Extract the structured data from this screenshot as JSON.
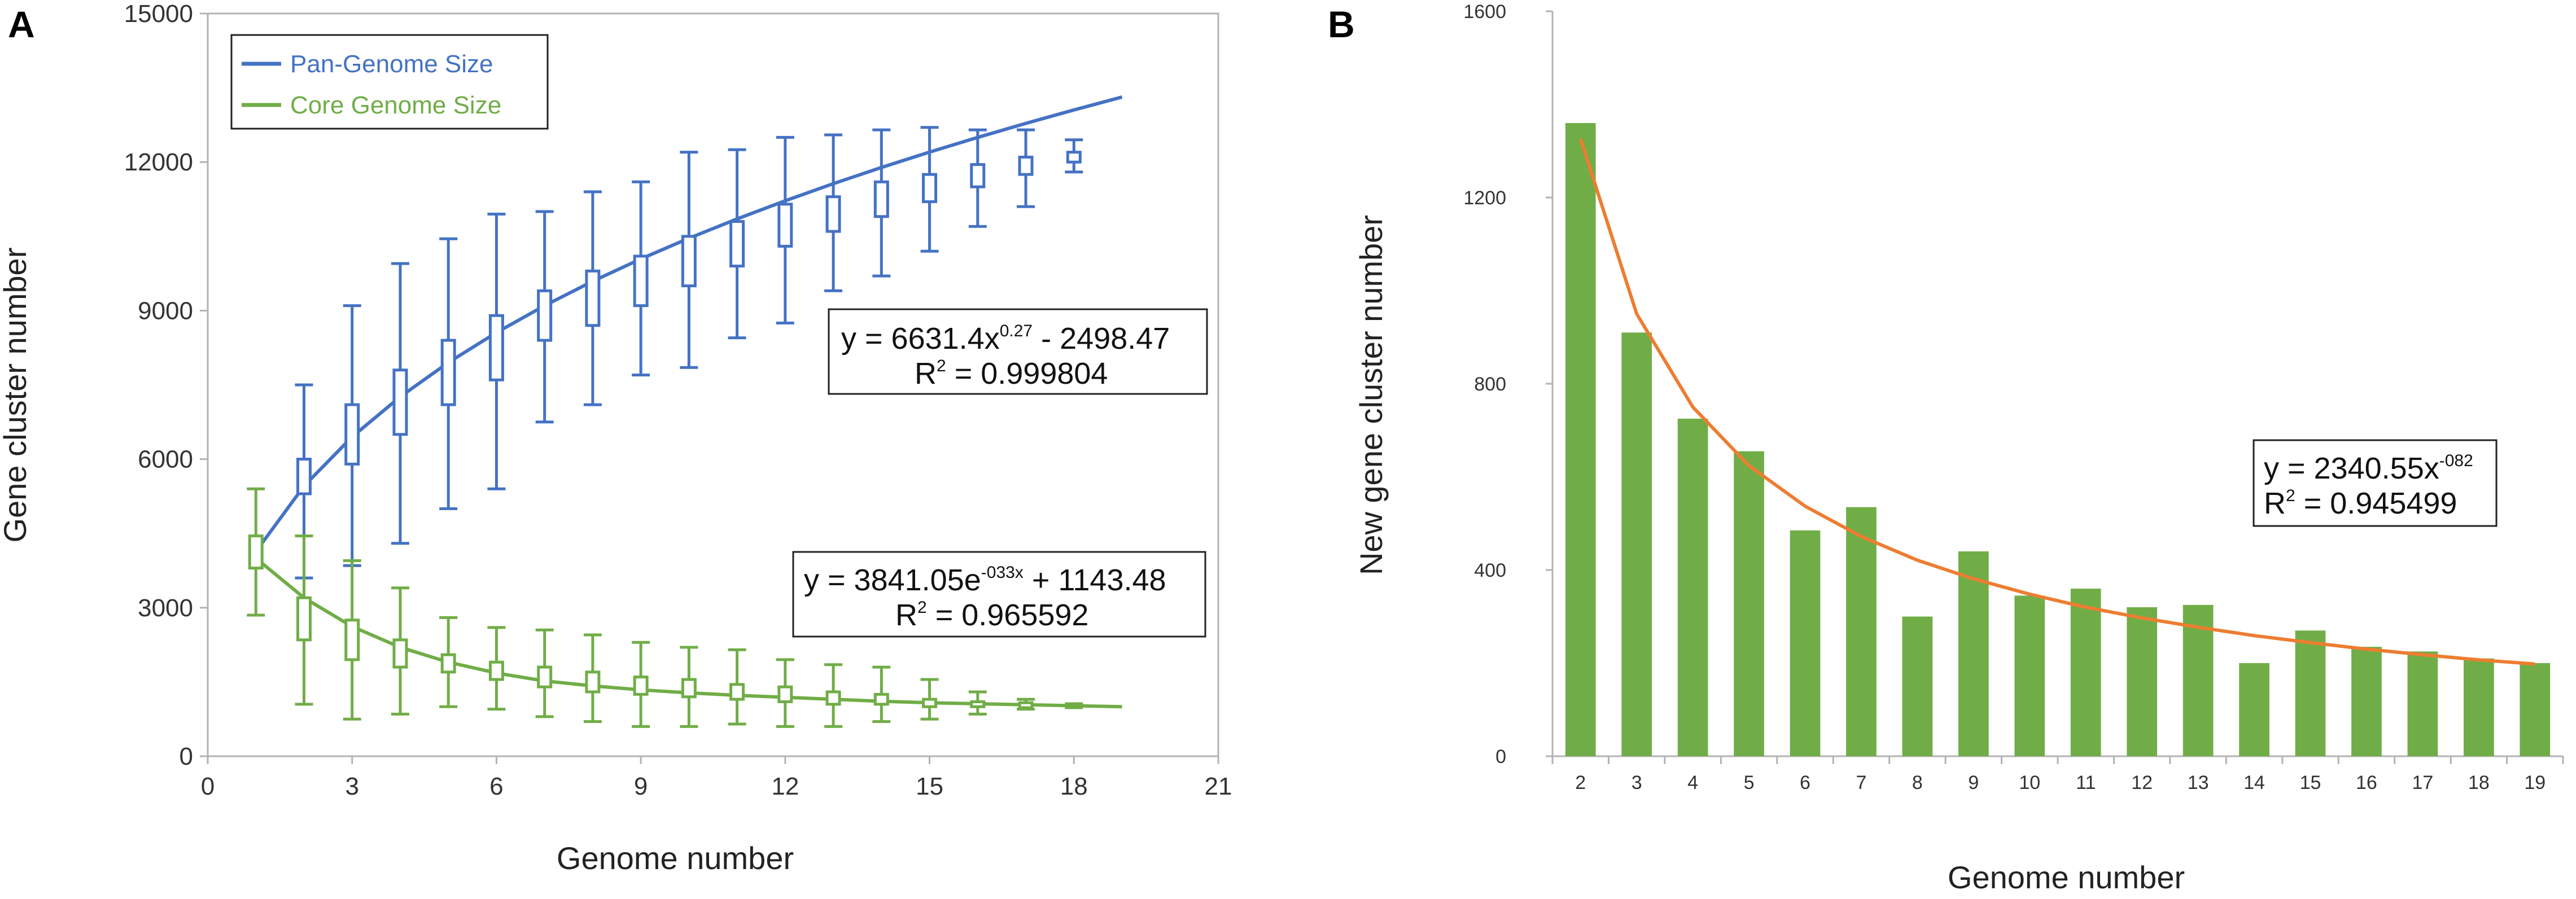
{
  "chart_data": [
    {
      "panel": "A",
      "type": "box-line",
      "xlabel": "Genome number",
      "ylabel": "Gene cluster number",
      "xlim": [
        0,
        21
      ],
      "ylim": [
        0,
        15000
      ],
      "xticks": [
        "0",
        "3",
        "6",
        "9",
        "12",
        "15",
        "18",
        "21"
      ],
      "yticks": [
        "0",
        "3000",
        "6000",
        "9000",
        "12000",
        "15000"
      ],
      "legend": {
        "position": "top-left",
        "entries": [
          "Pan-Genome Size",
          "Core Genome Size"
        ]
      },
      "colors": {
        "pan": "#4472c4",
        "core": "#70ad47"
      },
      "series": [
        {
          "name": "Pan-Genome Size",
          "fit_x": [
            1,
            2,
            3,
            4,
            5,
            6,
            7,
            8,
            9,
            10,
            11,
            12,
            13,
            14,
            15,
            16,
            17,
            18,
            19
          ],
          "fit_y": [
            4133,
            5457,
            6450,
            7260,
            7951,
            8557,
            9100,
            9593,
            10044,
            10462,
            10852,
            11218,
            11564,
            11891,
            12202,
            12498,
            12782,
            13053,
            13314
          ],
          "boxes": [
            {
              "x": 2,
              "min": 3600,
              "q1": 5300,
              "q3": 6000,
              "max": 7500
            },
            {
              "x": 3,
              "min": 3850,
              "q1": 5900,
              "q3": 7100,
              "max": 9100
            },
            {
              "x": 4,
              "min": 4300,
              "q1": 6500,
              "q3": 7800,
              "max": 9950
            },
            {
              "x": 5,
              "min": 5000,
              "q1": 7100,
              "q3": 8400,
              "max": 10450
            },
            {
              "x": 6,
              "min": 5400,
              "q1": 7600,
              "q3": 8900,
              "max": 10950
            },
            {
              "x": 7,
              "min": 6750,
              "q1": 8400,
              "q3": 9400,
              "max": 11000
            },
            {
              "x": 8,
              "min": 7100,
              "q1": 8700,
              "q3": 9800,
              "max": 11400
            },
            {
              "x": 9,
              "min": 7700,
              "q1": 9100,
              "q3": 10100,
              "max": 11600
            },
            {
              "x": 10,
              "min": 7850,
              "q1": 9500,
              "q3": 10500,
              "max": 12200
            },
            {
              "x": 11,
              "min": 8450,
              "q1": 9900,
              "q3": 10800,
              "max": 12250
            },
            {
              "x": 12,
              "min": 8750,
              "q1": 10300,
              "q3": 11150,
              "max": 12500
            },
            {
              "x": 13,
              "min": 9400,
              "q1": 10600,
              "q3": 11300,
              "max": 12550
            },
            {
              "x": 14,
              "min": 9700,
              "q1": 10900,
              "q3": 11600,
              "max": 12650
            },
            {
              "x": 15,
              "min": 10200,
              "q1": 11200,
              "q3": 11750,
              "max": 12700
            },
            {
              "x": 16,
              "min": 10700,
              "q1": 11500,
              "q3": 11950,
              "max": 12650
            },
            {
              "x": 17,
              "min": 11100,
              "q1": 11750,
              "q3": 12100,
              "max": 12650
            },
            {
              "x": 18,
              "min": 11800,
              "q1": 12000,
              "q3": 12200,
              "max": 12450
            }
          ],
          "equation": "y = 6631.4x^0.27 - 2498.47",
          "r2": "0.999804"
        },
        {
          "name": "Core Genome Size",
          "fit_x": [
            1,
            2,
            3,
            4,
            5,
            6,
            7,
            8,
            9,
            10,
            11,
            12,
            13,
            14,
            15,
            16,
            17,
            18,
            19
          ],
          "fit_y": [
            4000,
            3200,
            2620,
            2200,
            1900,
            1680,
            1520,
            1420,
            1340,
            1280,
            1230,
            1190,
            1150,
            1110,
            1080,
            1060,
            1040,
            1020,
            1000
          ],
          "boxes": [
            {
              "x": 1,
              "min": 2850,
              "q1": 3800,
              "q3": 4450,
              "max": 5400
            },
            {
              "x": 2,
              "min": 1050,
              "q1": 2350,
              "q3": 3200,
              "max": 4450
            },
            {
              "x": 3,
              "min": 750,
              "q1": 1950,
              "q3": 2750,
              "max": 3950
            },
            {
              "x": 4,
              "min": 850,
              "q1": 1800,
              "q3": 2350,
              "max": 3400
            },
            {
              "x": 5,
              "min": 1000,
              "q1": 1700,
              "q3": 2050,
              "max": 2800
            },
            {
              "x": 6,
              "min": 950,
              "q1": 1550,
              "q3": 1900,
              "max": 2600
            },
            {
              "x": 7,
              "min": 800,
              "q1": 1400,
              "q3": 1800,
              "max": 2550
            },
            {
              "x": 8,
              "min": 700,
              "q1": 1300,
              "q3": 1700,
              "max": 2450
            },
            {
              "x": 9,
              "min": 600,
              "q1": 1250,
              "q3": 1600,
              "max": 2300
            },
            {
              "x": 10,
              "min": 600,
              "q1": 1200,
              "q3": 1550,
              "max": 2200
            },
            {
              "x": 11,
              "min": 650,
              "q1": 1150,
              "q3": 1450,
              "max": 2150
            },
            {
              "x": 12,
              "min": 600,
              "q1": 1100,
              "q3": 1400,
              "max": 1950
            },
            {
              "x": 13,
              "min": 600,
              "q1": 1050,
              "q3": 1300,
              "max": 1850
            },
            {
              "x": 14,
              "min": 700,
              "q1": 1050,
              "q3": 1250,
              "max": 1800
            },
            {
              "x": 15,
              "min": 750,
              "q1": 1000,
              "q3": 1150,
              "max": 1550
            },
            {
              "x": 16,
              "min": 850,
              "q1": 1000,
              "q3": 1100,
              "max": 1300
            },
            {
              "x": 17,
              "min": 950,
              "q1": 980,
              "q3": 1080,
              "max": 1150
            },
            {
              "x": 18,
              "min": 980,
              "q1": 990,
              "q3": 1040,
              "max": 1060
            }
          ],
          "equation": "y = 3841.05e^-033x + 1143.48",
          "r2": "0.965592"
        }
      ]
    },
    {
      "panel": "B",
      "type": "bar",
      "xlabel": "Genome number",
      "ylabel": "New gene cluster number",
      "ylim": [
        0,
        1600
      ],
      "yticks": [
        "0",
        "400",
        "800",
        "1200",
        "1600"
      ],
      "categories": [
        "2",
        "3",
        "4",
        "5",
        "6",
        "7",
        "8",
        "9",
        "10",
        "11",
        "12",
        "13",
        "14",
        "15",
        "16",
        "17",
        "18",
        "19"
      ],
      "values": [
        1360,
        910,
        725,
        655,
        485,
        535,
        300,
        440,
        345,
        360,
        320,
        325,
        200,
        270,
        235,
        225,
        210,
        200
      ],
      "colors": {
        "bar": "#70ad47",
        "fit": "#ed7d31"
      },
      "fit": {
        "x": [
          2,
          3,
          4,
          5,
          6,
          7,
          8,
          9,
          10,
          11,
          12,
          13,
          14,
          15,
          16,
          17,
          18,
          19
        ],
        "y": [
          1326,
          950,
          750,
          624,
          537,
          472,
          421,
          381,
          348,
          320,
          297,
          277,
          259,
          244,
          230,
          218,
          207,
          198
        ],
        "equation": "y = 2340.55x^-082",
        "r2": "0.945499"
      }
    }
  ],
  "labels": {
    "panelA": "A",
    "panelB": "B",
    "eqA1_main": "y = 6631.4x",
    "eqA1_sup": "0.27",
    "eqA1_tail": " - 2498.47",
    "eqA1_r2": "R",
    "eqA1_r2sup": "2",
    "eqA1_r2val": " = 0.999804",
    "eqA2_main": "y = 3841.05e",
    "eqA2_sup": "-033x",
    "eqA2_tail": " + 1143.48",
    "eqA2_r2": "R",
    "eqA2_r2sup": "2",
    "eqA2_r2val": " = 0.965592",
    "eqB_main": "y = 2340.55x",
    "eqB_sup": "-082",
    "eqB_r2": "R",
    "eqB_r2sup": "2",
    "eqB_r2val": " = 0.945499"
  }
}
